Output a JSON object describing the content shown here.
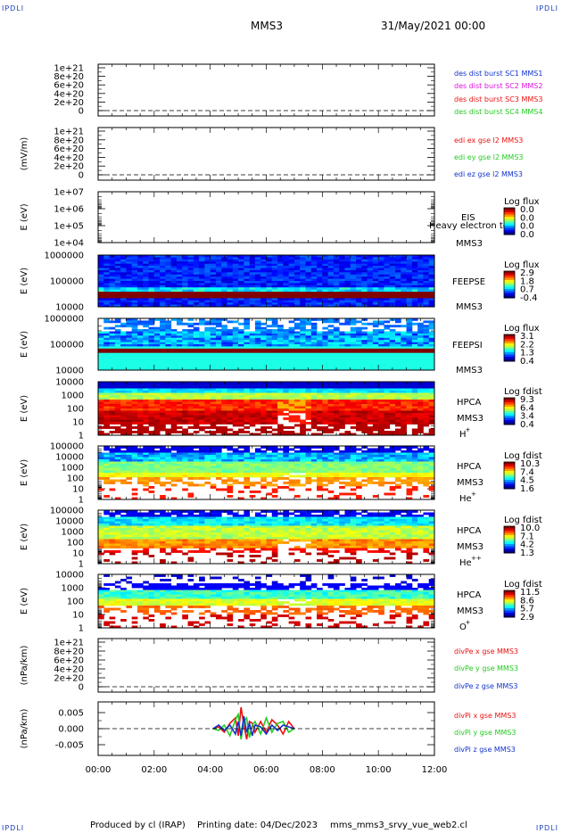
{
  "corner_label": "IPDLI",
  "header": {
    "spacecraft": "MMS3",
    "date": "31/May/2021 00:00"
  },
  "footer": {
    "produced_by": "Produced by cl (IRAP)",
    "printing_date": "Printing date: 04/Dec/2023",
    "filename": "mms_mms3_srvy_vue_web2.cl"
  },
  "colors": {
    "red": "#ee1111",
    "magenta": "#dd11dd",
    "green": "#22cc22",
    "blue": "#1133cc",
    "dark_red": "#8b0000"
  },
  "chart_data": {
    "type": "multi-panel time series",
    "x": {
      "ticks": [
        "00:00",
        "02:00",
        "04:00",
        "06:00",
        "08:00",
        "10:00",
        "12:00"
      ],
      "range_hours": [
        0,
        12
      ]
    },
    "panels": [
      {
        "id": "des-dist",
        "type": "line",
        "ylabel": "",
        "yticks": [
          "1e+21",
          "8e+20",
          "6e+20",
          "4e+20",
          "2e+20",
          "0"
        ],
        "ylim": [
          0,
          1e+21
        ],
        "series": [
          {
            "name": "des dist burst SC1 MMS1",
            "color": "#1133cc",
            "values": []
          },
          {
            "name": "des dist burst SC2 MMS2",
            "color": "#dd11dd",
            "values": []
          },
          {
            "name": "des dist burst SC3 MMS3",
            "color": "#ee1111",
            "values": []
          },
          {
            "name": "des dist burst SC4 MMS4",
            "color": "#22cc22",
            "values": []
          }
        ]
      },
      {
        "id": "edi-e",
        "type": "line",
        "ylabel": "(mV/m)",
        "yticks": [
          "1e+21",
          "8e+20",
          "6e+20",
          "4e+20",
          "2e+20",
          "0"
        ],
        "ylim": [
          0,
          1e+21
        ],
        "series": [
          {
            "name": "edi ex gse l2 MMS3",
            "color": "#ee1111",
            "values": []
          },
          {
            "name": "edi ey gse l2 MMS3",
            "color": "#22cc22",
            "values": []
          },
          {
            "name": "edi ez gse l2 MMS3",
            "color": "#1133cc",
            "values": []
          }
        ]
      },
      {
        "id": "eis",
        "type": "heatmap",
        "ylabel": "E (eV)",
        "yscale": "log",
        "yticks": [
          "1e+07",
          "1e+06",
          "1e+05",
          "1e+04"
        ],
        "instrument": [
          "EIS",
          "MMS3"
        ],
        "overlay_text": "Heavy electron tof",
        "colorbar": {
          "label": "Log flux",
          "ticks": [
            "0.0",
            "0.0",
            "0.0",
            "0.0"
          ]
        },
        "coverage_hours": []
      },
      {
        "id": "feeps-e",
        "type": "heatmap",
        "ylabel": "E (eV)",
        "yscale": "log",
        "yticks": [
          "1000000",
          "100000",
          "10000"
        ],
        "instrument": [
          "FEEPSE",
          "MMS3"
        ],
        "colorbar": {
          "label": "Log flux",
          "ticks": [
            "2.9",
            "1.8",
            "0.7",
            "-0.4"
          ]
        },
        "coverage_hours": [
          0,
          12
        ]
      },
      {
        "id": "feeps-i",
        "type": "heatmap",
        "ylabel": "E (eV)",
        "yscale": "log",
        "yticks": [
          "1000000",
          "100000",
          "10000"
        ],
        "instrument": [
          "FEEPSI",
          "MMS3"
        ],
        "colorbar": {
          "label": "Log flux",
          "ticks": [
            "3.1",
            "2.2",
            "1.3",
            "0.4"
          ]
        },
        "coverage_hours": [
          0,
          12
        ]
      },
      {
        "id": "hpca-h",
        "type": "heatmap",
        "ylabel": "E (eV)",
        "yscale": "log",
        "yticks": [
          "10000",
          "1000",
          "100",
          "10",
          "1"
        ],
        "instrument": [
          "HPCA",
          "MMS3"
        ],
        "species": "H",
        "species_charge": "+",
        "colorbar": {
          "label": "Log fdist",
          "ticks": [
            "9.3",
            "6.4",
            "3.4",
            "0.4"
          ]
        },
        "coverage_hours": [
          0,
          12
        ]
      },
      {
        "id": "hpca-he1",
        "type": "heatmap",
        "ylabel": "E (eV)",
        "yscale": "log",
        "yticks": [
          "100000",
          "10000",
          "1000",
          "100",
          "10",
          "1"
        ],
        "instrument": [
          "HPCA",
          "MMS3"
        ],
        "species": "He",
        "species_charge": "+",
        "colorbar": {
          "label": "Log fdist",
          "ticks": [
            "10.3",
            "7.4",
            "4.5",
            "1.6"
          ]
        },
        "coverage_hours": [
          0,
          12
        ]
      },
      {
        "id": "hpca-he2",
        "type": "heatmap",
        "ylabel": "E (eV)",
        "yscale": "log",
        "yticks": [
          "100000",
          "10000",
          "1000",
          "100",
          "10",
          "1"
        ],
        "instrument": [
          "HPCA",
          "MMS3"
        ],
        "species": "He",
        "species_charge": "++",
        "colorbar": {
          "label": "Log fdist",
          "ticks": [
            "10.0",
            "7.1",
            "4.2",
            "1.3"
          ]
        },
        "coverage_hours": [
          0,
          12
        ]
      },
      {
        "id": "hpca-o",
        "type": "heatmap",
        "ylabel": "E (eV)",
        "yscale": "log",
        "yticks": [
          "10000",
          "1000",
          "100",
          "10",
          "1"
        ],
        "instrument": [
          "HPCA",
          "MMS3"
        ],
        "species": "O",
        "species_charge": "+",
        "colorbar": {
          "label": "Log fdist",
          "ticks": [
            "11.5",
            "8.6",
            "5.7",
            "2.9"
          ]
        },
        "coverage_hours": [
          0,
          12
        ]
      },
      {
        "id": "divpe",
        "type": "line",
        "ylabel": "(nPa/km)",
        "yticks": [
          "1e+21",
          "8e+20",
          "6e+20",
          "4e+20",
          "2e+20",
          "0"
        ],
        "ylim": [
          0,
          1e+21
        ],
        "series": [
          {
            "name": "divPe x gse MMS3",
            "color": "#ee1111",
            "values": []
          },
          {
            "name": "divPe y gse MMS3",
            "color": "#22cc22",
            "values": []
          },
          {
            "name": "divPe z gse MMS3",
            "color": "#1133cc",
            "values": []
          }
        ]
      },
      {
        "id": "divpi",
        "type": "line",
        "ylabel": "(nPa/km)",
        "yticks": [
          "0.005",
          "0.000",
          "-0.005"
        ],
        "ylim": [
          -0.0075,
          0.0075
        ],
        "data_span_hours": [
          4.1,
          7.0
        ],
        "series": [
          {
            "name": "divPi x gse MMS3",
            "color": "#ee1111",
            "x": [
              4.1,
              4.3,
              4.5,
              4.7,
              4.9,
              5.0,
              5.1,
              5.2,
              5.3,
              5.4,
              5.5,
              5.6,
              5.8,
              6.0,
              6.2,
              6.4,
              6.6,
              6.8,
              7.0
            ],
            "values": [
              0.0,
              0.0005,
              -0.001,
              0.0015,
              0.003,
              -0.002,
              0.006,
              0.001,
              -0.003,
              0.002,
              0.0015,
              -0.001,
              0.002,
              -0.001,
              0.0025,
              0.001,
              -0.0015,
              0.002,
              0.0
            ]
          },
          {
            "name": "divPi y gse MMS3",
            "color": "#22cc22",
            "x": [
              4.1,
              4.3,
              4.5,
              4.7,
              4.9,
              5.0,
              5.1,
              5.2,
              5.3,
              5.4,
              5.5,
              5.6,
              5.8,
              6.0,
              6.2,
              6.4,
              6.6,
              6.8,
              7.0
            ],
            "values": [
              0.0,
              -0.0005,
              0.001,
              -0.002,
              0.0025,
              0.004,
              -0.003,
              0.002,
              0.003,
              -0.0025,
              0.001,
              0.002,
              -0.0015,
              0.003,
              -0.001,
              0.0015,
              0.002,
              -0.001,
              0.0
            ]
          },
          {
            "name": "divPi z gse MMS3",
            "color": "#1133cc",
            "x": [
              4.1,
              4.3,
              4.5,
              4.7,
              4.9,
              5.0,
              5.1,
              5.2,
              5.3,
              5.4,
              5.5,
              5.6,
              5.8,
              6.0,
              6.2,
              6.4,
              6.6,
              6.8,
              7.0
            ],
            "values": [
              0.0,
              0.001,
              -0.0005,
              0.001,
              -0.0015,
              0.002,
              -0.002,
              0.0035,
              -0.001,
              0.0015,
              -0.002,
              0.001,
              0.0005,
              -0.0015,
              0.001,
              -0.0005,
              0.001,
              0.0005,
              0.0
            ]
          }
        ]
      }
    ]
  }
}
